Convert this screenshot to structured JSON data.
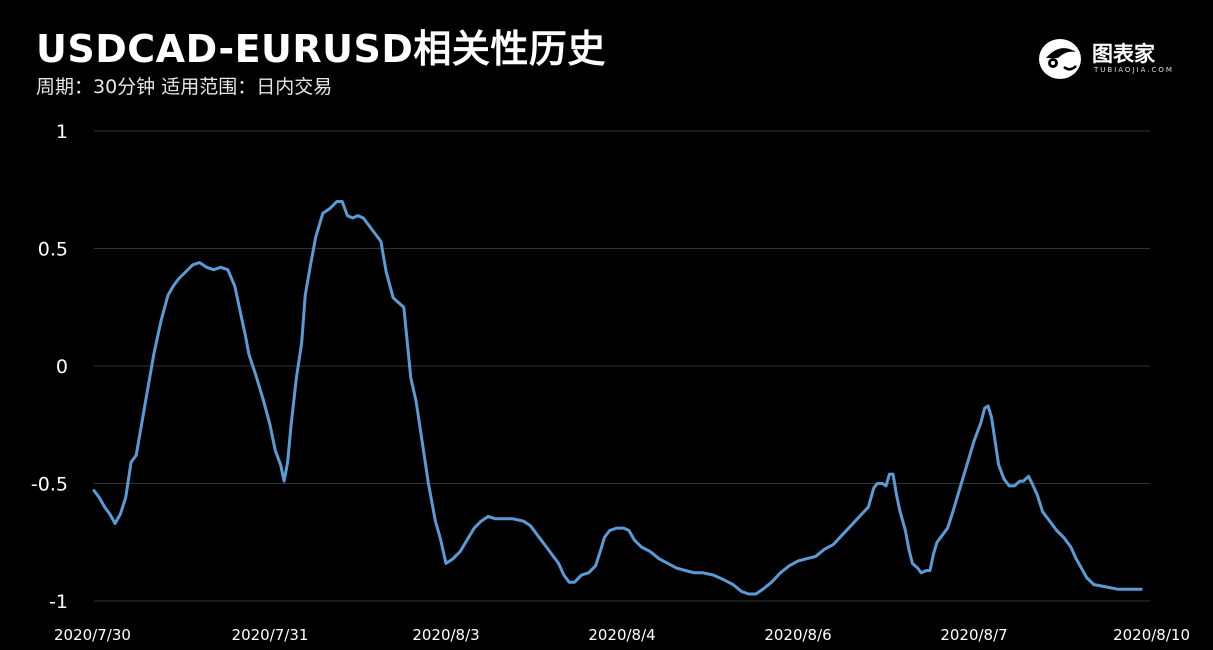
{
  "header": {
    "title": "USDCAD-EURUSD相关性历史",
    "subtitle": "周期：30分钟 适用范围：日内交易"
  },
  "logo": {
    "text": "图表家",
    "sub": "TUBIAOJIA.COM"
  },
  "colors": {
    "background": "#000000",
    "line": "#5b9bd5",
    "grid": "#333333",
    "text": "#ffffff"
  },
  "chart_data": {
    "type": "line",
    "title": "USDCAD-EURUSD相关性历史",
    "xlabel": "",
    "ylabel": "",
    "ylim": [
      -1,
      1
    ],
    "yticks": [
      1,
      0.5,
      0,
      -0.5,
      -1
    ],
    "ytick_labels": [
      "1",
      "0.5",
      "0",
      "-0.5",
      "-1"
    ],
    "xticks": [
      0,
      100,
      200,
      300,
      400,
      500,
      600
    ],
    "xtick_labels": [
      "2020/7/30",
      "2020/7/31",
      "2020/8/3",
      "2020/8/4",
      "2020/8/6",
      "2020/8/7",
      "2020/8/10"
    ],
    "grid": true,
    "series": [
      {
        "color": "#5b9bd5",
        "points": [
          [
            0,
            -0.53
          ],
          [
            3,
            -0.56
          ],
          [
            6,
            -0.6
          ],
          [
            9,
            -0.63
          ],
          [
            12,
            -0.67
          ],
          [
            15,
            -0.63
          ],
          [
            18,
            -0.56
          ],
          [
            21,
            -0.41
          ],
          [
            24,
            -0.38
          ],
          [
            27,
            -0.25
          ],
          [
            30,
            -0.12
          ],
          [
            34,
            0.05
          ],
          [
            38,
            0.19
          ],
          [
            42,
            0.3
          ],
          [
            45,
            0.34
          ],
          [
            48,
            0.37
          ],
          [
            52,
            0.4
          ],
          [
            56,
            0.43
          ],
          [
            60,
            0.44
          ],
          [
            64,
            0.42
          ],
          [
            68,
            0.41
          ],
          [
            72,
            0.42
          ],
          [
            76,
            0.41
          ],
          [
            80,
            0.34
          ],
          [
            82,
            0.27
          ],
          [
            84,
            0.2
          ],
          [
            86,
            0.13
          ],
          [
            88,
            0.05
          ],
          [
            92,
            -0.04
          ],
          [
            96,
            -0.14
          ],
          [
            100,
            -0.25
          ],
          [
            103,
            -0.36
          ],
          [
            106,
            -0.42
          ],
          [
            108,
            -0.49
          ],
          [
            110,
            -0.41
          ],
          [
            112,
            -0.25
          ],
          [
            115,
            -0.05
          ],
          [
            118,
            0.1
          ],
          [
            120,
            0.3
          ],
          [
            123,
            0.43
          ],
          [
            126,
            0.55
          ],
          [
            130,
            0.65
          ],
          [
            134,
            0.67
          ],
          [
            138,
            0.7
          ],
          [
            141,
            0.7
          ],
          [
            144,
            0.64
          ],
          [
            147,
            0.63
          ],
          [
            150,
            0.64
          ],
          [
            153,
            0.63
          ],
          [
            156,
            0.6
          ],
          [
            160,
            0.56
          ],
          [
            163,
            0.53
          ],
          [
            166,
            0.4
          ],
          [
            170,
            0.29
          ],
          [
            173,
            0.27
          ],
          [
            176,
            0.25
          ],
          [
            178,
            0.1
          ],
          [
            180,
            -0.05
          ],
          [
            183,
            -0.15
          ],
          [
            186,
            -0.3
          ],
          [
            190,
            -0.5
          ],
          [
            194,
            -0.66
          ],
          [
            197,
            -0.74
          ],
          [
            200,
            -0.84
          ],
          [
            204,
            -0.82
          ],
          [
            208,
            -0.79
          ],
          [
            212,
            -0.74
          ],
          [
            216,
            -0.69
          ],
          [
            220,
            -0.66
          ],
          [
            224,
            -0.64
          ],
          [
            228,
            -0.65
          ],
          [
            232,
            -0.65
          ],
          [
            238,
            -0.65
          ],
          [
            244,
            -0.66
          ],
          [
            248,
            -0.68
          ],
          [
            252,
            -0.72
          ],
          [
            256,
            -0.76
          ],
          [
            260,
            -0.8
          ],
          [
            264,
            -0.84
          ],
          [
            267,
            -0.89
          ],
          [
            270,
            -0.92
          ],
          [
            273,
            -0.92
          ],
          [
            277,
            -0.89
          ],
          [
            281,
            -0.88
          ],
          [
            285,
            -0.85
          ],
          [
            288,
            -0.78
          ],
          [
            290,
            -0.73
          ],
          [
            293,
            -0.7
          ],
          [
            297,
            -0.69
          ],
          [
            301,
            -0.69
          ],
          [
            304,
            -0.7
          ],
          [
            307,
            -0.74
          ],
          [
            311,
            -0.77
          ],
          [
            316,
            -0.79
          ],
          [
            321,
            -0.82
          ],
          [
            326,
            -0.84
          ],
          [
            331,
            -0.86
          ],
          [
            336,
            -0.87
          ],
          [
            341,
            -0.88
          ],
          [
            346,
            -0.88
          ],
          [
            352,
            -0.89
          ],
          [
            358,
            -0.91
          ],
          [
            363,
            -0.93
          ],
          [
            368,
            -0.96
          ],
          [
            372,
            -0.97
          ],
          [
            376,
            -0.97
          ],
          [
            380,
            -0.95
          ],
          [
            385,
            -0.92
          ],
          [
            390,
            -0.88
          ],
          [
            395,
            -0.85
          ],
          [
            400,
            -0.83
          ],
          [
            405,
            -0.82
          ],
          [
            410,
            -0.81
          ],
          [
            415,
            -0.78
          ],
          [
            420,
            -0.76
          ],
          [
            425,
            -0.72
          ],
          [
            430,
            -0.68
          ],
          [
            435,
            -0.64
          ],
          [
            440,
            -0.6
          ],
          [
            443,
            -0.52
          ],
          [
            445,
            -0.5
          ],
          [
            448,
            -0.5
          ],
          [
            450,
            -0.51
          ],
          [
            452,
            -0.46
          ],
          [
            454,
            -0.46
          ],
          [
            456,
            -0.55
          ],
          [
            458,
            -0.62
          ],
          [
            461,
            -0.7
          ],
          [
            463,
            -0.78
          ],
          [
            465,
            -0.84
          ],
          [
            468,
            -0.86
          ],
          [
            470,
            -0.88
          ],
          [
            473,
            -0.87
          ],
          [
            475,
            -0.87
          ],
          [
            477,
            -0.8
          ],
          [
            479,
            -0.75
          ],
          [
            482,
            -0.72
          ],
          [
            485,
            -0.69
          ],
          [
            488,
            -0.62
          ],
          [
            492,
            -0.52
          ],
          [
            496,
            -0.42
          ],
          [
            500,
            -0.32
          ],
          [
            504,
            -0.24
          ],
          [
            506,
            -0.18
          ],
          [
            508,
            -0.17
          ],
          [
            510,
            -0.22
          ],
          [
            512,
            -0.32
          ],
          [
            514,
            -0.42
          ],
          [
            517,
            -0.48
          ],
          [
            520,
            -0.51
          ],
          [
            523,
            -0.51
          ],
          [
            526,
            -0.49
          ],
          [
            528,
            -0.49
          ],
          [
            531,
            -0.47
          ],
          [
            533,
            -0.5
          ],
          [
            536,
            -0.55
          ],
          [
            539,
            -0.62
          ],
          [
            543,
            -0.66
          ],
          [
            547,
            -0.7
          ],
          [
            551,
            -0.73
          ],
          [
            555,
            -0.77
          ],
          [
            558,
            -0.82
          ],
          [
            561,
            -0.86
          ],
          [
            564,
            -0.9
          ],
          [
            568,
            -0.93
          ],
          [
            575,
            -0.94
          ],
          [
            582,
            -0.95
          ],
          [
            590,
            -0.95
          ],
          [
            595,
            -0.95
          ]
        ]
      }
    ]
  }
}
